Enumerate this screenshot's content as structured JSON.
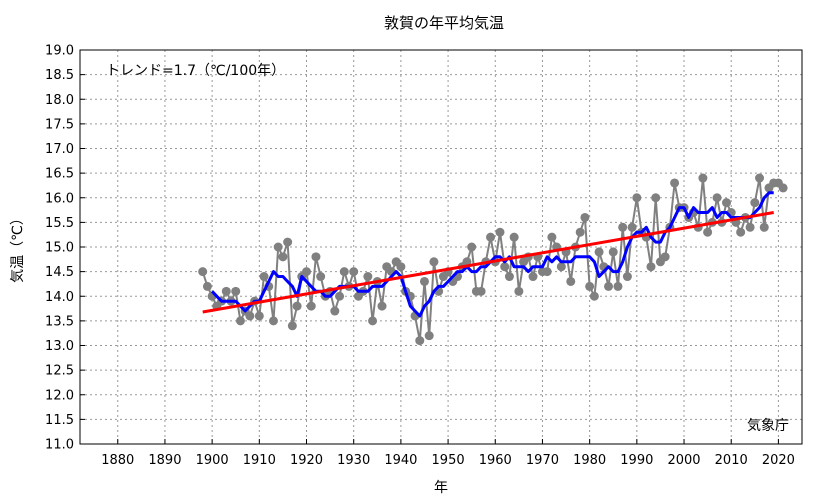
{
  "chart_data": {
    "type": "line",
    "title": "敦賀の年平均気温",
    "xlabel": "年",
    "ylabel": "気温（℃）",
    "xlim": [
      1872,
      2025
    ],
    "ylim": [
      11.0,
      19.0
    ],
    "x_ticks": [
      1880,
      1890,
      1900,
      1910,
      1920,
      1930,
      1940,
      1950,
      1960,
      1970,
      1980,
      1990,
      2000,
      2010,
      2020
    ],
    "y_ticks": [
      11.0,
      11.5,
      12.0,
      12.5,
      13.0,
      13.5,
      14.0,
      14.5,
      15.0,
      15.5,
      16.0,
      16.5,
      17.0,
      17.5,
      18.0,
      18.5,
      19.0
    ],
    "grid": true,
    "trend_label": "トレンド=1.7（℃/100年）",
    "credit": "気象庁",
    "series": [
      {
        "color": "#808080",
        "x": [
          1898,
          1899,
          1900,
          1901,
          1902,
          1903,
          1904,
          1905,
          1906,
          1907,
          1908,
          1909,
          1910,
          1911,
          1912,
          1913,
          1914,
          1915,
          1916,
          1917,
          1918,
          1919,
          1920,
          1921,
          1922,
          1923,
          1924,
          1925,
          1926,
          1927,
          1928,
          1929,
          1930,
          1931,
          1932,
          1933,
          1934,
          1935,
          1936,
          1937,
          1938,
          1939,
          1940,
          1941,
          1942,
          1943,
          1944,
          1945,
          1946,
          1947,
          1948,
          1949,
          1950,
          1951,
          1952,
          1953,
          1954,
          1955,
          1956,
          1957,
          1958,
          1959,
          1960,
          1961,
          1962,
          1963,
          1964,
          1965,
          1966,
          1967,
          1968,
          1969,
          1970,
          1971,
          1972,
          1973,
          1974,
          1975,
          1976,
          1977,
          1978,
          1979,
          1980,
          1981,
          1982,
          1983,
          1984,
          1985,
          1986,
          1987,
          1988,
          1989,
          1990,
          1991,
          1992,
          1993,
          1994,
          1995,
          1996,
          1997,
          1998,
          1999,
          2000,
          2001,
          2002,
          2003,
          2004,
          2005,
          2006,
          2007,
          2008,
          2009,
          2010,
          2011,
          2012,
          2013,
          2014,
          2015,
          2016,
          2017,
          2018,
          2019,
          2020,
          2021
        ],
        "y": [
          14.5,
          14.2,
          14.0,
          13.8,
          13.9,
          14.1,
          13.9,
          14.1,
          13.5,
          13.7,
          13.6,
          13.9,
          13.6,
          14.4,
          14.2,
          13.5,
          15.0,
          14.8,
          15.1,
          13.4,
          13.8,
          14.4,
          14.5,
          13.8,
          14.8,
          14.4,
          14.0,
          14.1,
          13.7,
          14.0,
          14.5,
          14.2,
          14.5,
          14.0,
          14.1,
          14.4,
          13.5,
          14.3,
          13.8,
          14.6,
          14.5,
          14.7,
          14.6,
          14.1,
          14.0,
          13.6,
          13.1,
          14.3,
          13.2,
          14.7,
          14.1,
          14.4,
          14.5,
          14.3,
          14.4,
          14.6,
          14.7,
          15.0,
          14.1,
          14.1,
          14.7,
          15.2,
          14.7,
          15.3,
          14.6,
          14.4,
          15.2,
          14.1,
          14.7,
          14.8,
          14.4,
          14.8,
          14.5,
          14.5,
          15.2,
          15.0,
          14.6,
          14.9,
          14.3,
          15.0,
          15.3,
          15.6,
          14.2,
          14.0,
          14.9,
          14.6,
          14.2,
          14.9,
          14.2,
          15.4,
          14.4,
          15.4,
          16.0,
          15.3,
          15.2,
          14.6,
          16.0,
          14.7,
          14.8,
          15.4,
          16.3,
          15.8,
          15.8,
          15.6,
          15.7,
          15.4,
          16.4,
          15.3,
          15.5,
          16.0,
          15.5,
          15.9,
          15.7,
          15.5,
          15.3,
          15.6,
          15.4,
          15.9,
          16.4,
          15.4,
          16.2,
          16.3,
          16.3,
          16.2
        ]
      },
      {
        "color": "#0000ff",
        "x": [
          1900,
          1901,
          1902,
          1903,
          1904,
          1905,
          1906,
          1907,
          1908,
          1909,
          1910,
          1911,
          1912,
          1913,
          1914,
          1915,
          1916,
          1917,
          1918,
          1919,
          1920,
          1921,
          1922,
          1923,
          1924,
          1925,
          1926,
          1927,
          1928,
          1929,
          1930,
          1931,
          1932,
          1933,
          1934,
          1935,
          1936,
          1937,
          1938,
          1939,
          1940,
          1941,
          1942,
          1943,
          1944,
          1945,
          1946,
          1947,
          1948,
          1949,
          1950,
          1951,
          1952,
          1953,
          1954,
          1955,
          1956,
          1957,
          1958,
          1959,
          1960,
          1961,
          1962,
          1963,
          1964,
          1965,
          1966,
          1967,
          1968,
          1969,
          1970,
          1971,
          1972,
          1973,
          1974,
          1975,
          1976,
          1977,
          1978,
          1979,
          1980,
          1981,
          1982,
          1983,
          1984,
          1985,
          1986,
          1987,
          1988,
          1989,
          1990,
          1991,
          1992,
          1993,
          1994,
          1995,
          1996,
          1997,
          1998,
          1999,
          2000,
          2001,
          2002,
          2003,
          2004,
          2005,
          2006,
          2007,
          2008,
          2009,
          2010,
          2011,
          2012,
          2013,
          2014,
          2015,
          2016,
          2017,
          2018,
          2019
        ],
        "y": [
          14.1,
          14.0,
          13.9,
          13.9,
          13.9,
          13.9,
          13.8,
          13.7,
          13.8,
          13.9,
          13.9,
          14.1,
          14.3,
          14.5,
          14.4,
          14.4,
          14.3,
          14.2,
          14.0,
          14.4,
          14.3,
          14.2,
          14.1,
          14.1,
          14.0,
          14.0,
          14.1,
          14.2,
          14.2,
          14.2,
          14.2,
          14.1,
          14.1,
          14.1,
          14.2,
          14.2,
          14.2,
          14.3,
          14.4,
          14.5,
          14.4,
          14.1,
          13.8,
          13.7,
          13.6,
          13.8,
          13.9,
          14.1,
          14.2,
          14.2,
          14.3,
          14.4,
          14.5,
          14.5,
          14.6,
          14.5,
          14.5,
          14.6,
          14.6,
          14.7,
          14.8,
          14.8,
          14.7,
          14.8,
          14.6,
          14.6,
          14.6,
          14.5,
          14.6,
          14.6,
          14.6,
          14.8,
          14.7,
          14.8,
          14.7,
          14.7,
          14.7,
          14.8,
          14.8,
          14.8,
          14.8,
          14.7,
          14.4,
          14.5,
          14.6,
          14.5,
          14.5,
          14.7,
          15.0,
          15.2,
          15.3,
          15.3,
          15.4,
          15.2,
          15.1,
          15.1,
          15.3,
          15.4,
          15.6,
          15.8,
          15.8,
          15.6,
          15.8,
          15.7,
          15.7,
          15.7,
          15.8,
          15.6,
          15.7,
          15.7,
          15.6,
          15.6,
          15.6,
          15.6,
          15.6,
          15.7,
          15.8,
          16.0,
          16.1,
          16.1
        ]
      },
      {
        "color": "#ff0000",
        "x": [
          1898,
          2019
        ],
        "y": [
          13.68,
          15.7
        ]
      }
    ]
  }
}
